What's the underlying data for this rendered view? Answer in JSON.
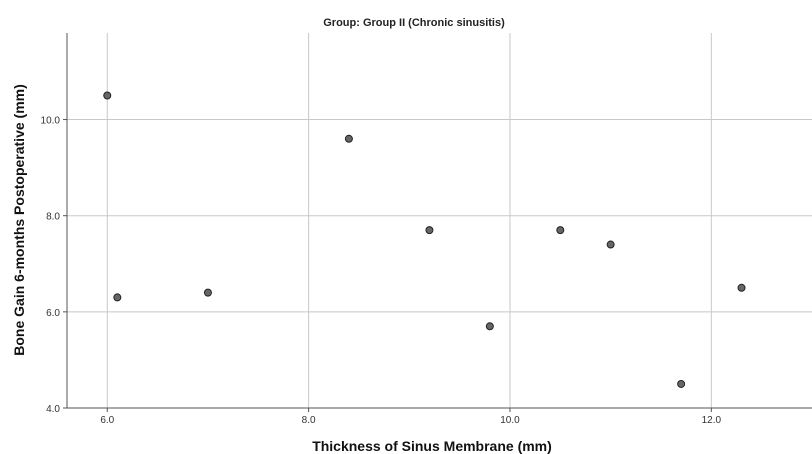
{
  "chart_data": {
    "type": "scatter",
    "title": "Group: Group II (Chronic sinusitis)",
    "xlabel": "Thickness of Sinus Membrane (mm)",
    "ylabel": "Bone Gain 6-months Postoperative (mm)",
    "xlim": [
      5.6,
      13.0
    ],
    "ylim": [
      4.0,
      11.8
    ],
    "x_ticks": [
      6.0,
      8.0,
      10.0,
      12.0
    ],
    "y_ticks": [
      4.0,
      6.0,
      8.0,
      10.0
    ],
    "x_tick_labels": [
      "6.0",
      "8.0",
      "10.0",
      "12.0"
    ],
    "y_tick_labels": [
      "4.0",
      "6.0",
      "8.0",
      "10.0"
    ],
    "grid": true,
    "point_color": "#666666",
    "points": [
      {
        "x": 6.0,
        "y": 10.5
      },
      {
        "x": 6.1,
        "y": 6.3
      },
      {
        "x": 7.0,
        "y": 6.4
      },
      {
        "x": 8.4,
        "y": 9.6
      },
      {
        "x": 9.2,
        "y": 7.7
      },
      {
        "x": 9.8,
        "y": 5.7
      },
      {
        "x": 10.5,
        "y": 7.7
      },
      {
        "x": 11.0,
        "y": 7.4
      },
      {
        "x": 11.7,
        "y": 4.5
      },
      {
        "x": 12.3,
        "y": 6.5
      }
    ]
  }
}
